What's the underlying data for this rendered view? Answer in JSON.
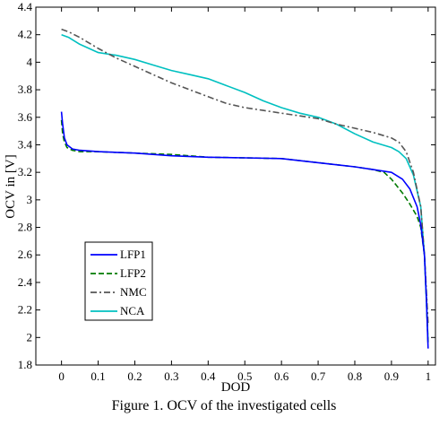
{
  "chart_data": {
    "type": "line",
    "xlabel": "DOD",
    "ylabel": "OCV in [V]",
    "xlim": [
      -0.07,
      1.02
    ],
    "ylim": [
      1.8,
      4.4
    ],
    "xticks": [
      "0",
      "0.1",
      "0.2",
      "0.3",
      "0.4",
      "0.5",
      "0.6",
      "0.7",
      "0.8",
      "0.9",
      "1"
    ],
    "yticks": [
      "1.8",
      "2",
      "2.2",
      "2.4",
      "2.6",
      "2.8",
      "3",
      "3.2",
      "3.4",
      "3.6",
      "3.8",
      "4",
      "4.2",
      "4.4"
    ],
    "grid": false,
    "legend_position": "lower-left",
    "series": [
      {
        "name": "LFP1",
        "color": "#0000ff",
        "dash": "solid",
        "x": [
          0,
          0.003,
          0.008,
          0.015,
          0.03,
          0.05,
          0.08,
          0.1,
          0.15,
          0.2,
          0.3,
          0.4,
          0.5,
          0.6,
          0.7,
          0.8,
          0.85,
          0.9,
          0.93,
          0.95,
          0.97,
          0.98,
          0.99,
          0.995,
          1.0
        ],
        "y": [
          3.64,
          3.55,
          3.45,
          3.4,
          3.37,
          3.36,
          3.355,
          3.35,
          3.345,
          3.34,
          3.32,
          3.31,
          3.305,
          3.3,
          3.27,
          3.24,
          3.22,
          3.2,
          3.15,
          3.08,
          2.95,
          2.82,
          2.6,
          2.3,
          1.92
        ]
      },
      {
        "name": "LFP2",
        "color": "#007a00",
        "dash": "dashed",
        "x": [
          0,
          0.003,
          0.008,
          0.015,
          0.03,
          0.05,
          0.08,
          0.1,
          0.15,
          0.2,
          0.3,
          0.4,
          0.5,
          0.6,
          0.7,
          0.8,
          0.85,
          0.88,
          0.9,
          0.93,
          0.95,
          0.97,
          0.98,
          0.99,
          0.995,
          1.0
        ],
        "y": [
          3.58,
          3.48,
          3.42,
          3.38,
          3.36,
          3.35,
          3.35,
          3.35,
          3.345,
          3.34,
          3.33,
          3.31,
          3.305,
          3.3,
          3.27,
          3.24,
          3.22,
          3.2,
          3.15,
          3.05,
          2.97,
          2.88,
          2.8,
          2.6,
          2.3,
          1.95
        ]
      },
      {
        "name": "NMC",
        "color": "#555555",
        "dash": "dashdot",
        "x": [
          0,
          0.02,
          0.05,
          0.1,
          0.15,
          0.2,
          0.25,
          0.3,
          0.35,
          0.4,
          0.45,
          0.5,
          0.55,
          0.6,
          0.65,
          0.7,
          0.75,
          0.8,
          0.85,
          0.9,
          0.92,
          0.94,
          0.96,
          0.98,
          0.99,
          1.0
        ],
        "y": [
          4.24,
          4.22,
          4.18,
          4.1,
          4.03,
          3.97,
          3.91,
          3.85,
          3.8,
          3.75,
          3.7,
          3.67,
          3.65,
          3.63,
          3.61,
          3.59,
          3.55,
          3.52,
          3.49,
          3.45,
          3.42,
          3.35,
          3.2,
          2.95,
          2.6,
          2.1
        ]
      },
      {
        "name": "NCA",
        "color": "#00c0c0",
        "dash": "solid",
        "x": [
          0,
          0.02,
          0.05,
          0.1,
          0.15,
          0.2,
          0.25,
          0.3,
          0.35,
          0.4,
          0.45,
          0.5,
          0.55,
          0.6,
          0.65,
          0.7,
          0.75,
          0.8,
          0.85,
          0.9,
          0.92,
          0.94,
          0.96,
          0.98,
          0.99,
          1.0
        ],
        "y": [
          4.2,
          4.18,
          4.13,
          4.07,
          4.05,
          4.02,
          3.98,
          3.94,
          3.91,
          3.88,
          3.83,
          3.78,
          3.72,
          3.67,
          3.63,
          3.6,
          3.55,
          3.48,
          3.42,
          3.38,
          3.35,
          3.3,
          3.18,
          2.95,
          2.6,
          1.97
        ]
      }
    ]
  },
  "caption": "Figure 1. OCV of the investigated cells"
}
